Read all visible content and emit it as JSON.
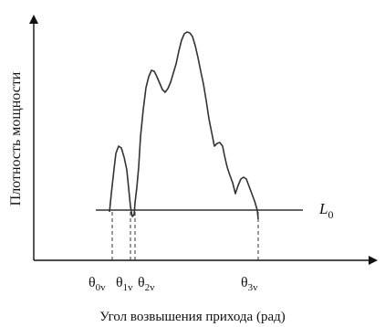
{
  "diagram": {
    "y_axis_label": "Плотность мощности",
    "x_axis_label": "Угол возвышения прихода (рад)",
    "threshold_label": {
      "main": "L",
      "sub": "0"
    },
    "theta_labels": [
      {
        "main": "θ",
        "sub": "0v"
      },
      {
        "main": "θ",
        "sub": "1v"
      },
      {
        "main": "θ",
        "sub": "2v"
      },
      {
        "main": "θ",
        "sub": "3v"
      }
    ]
  }
}
